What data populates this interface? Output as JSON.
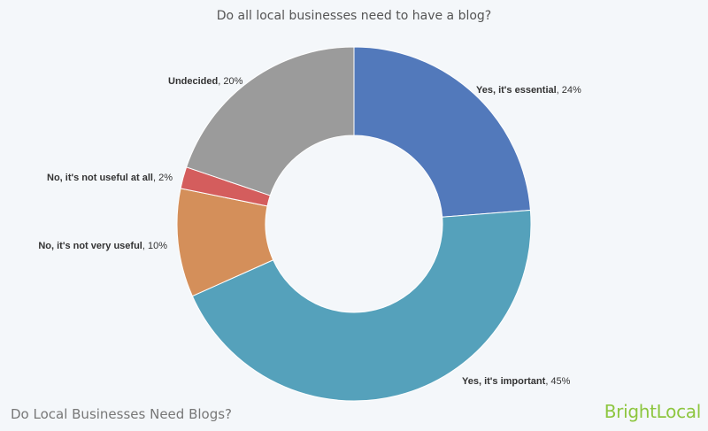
{
  "chart_data": {
    "type": "pie",
    "title": "Do all local businesses need to have a blog?",
    "categories": [
      "Yes, it's essential",
      "Yes, it's important",
      "No, it's not very useful",
      "No, it's not useful at all",
      "Undecided"
    ],
    "values": [
      24,
      45,
      10,
      2,
      20
    ],
    "value_labels": [
      "24%",
      "45%",
      "10%",
      "2%",
      "20%"
    ],
    "colors": [
      "#5279bb",
      "#55a1bb",
      "#d48f5a",
      "#d45d5d",
      "#9b9b9b"
    ],
    "donut": true
  },
  "footer": {
    "title": "Do Local Businesses Need Blogs?",
    "brand": "BrightLocal"
  }
}
